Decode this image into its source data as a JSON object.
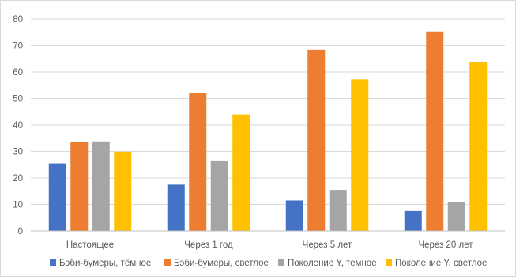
{
  "chart_data": {
    "type": "bar",
    "categories": [
      "Настоящее",
      "Через 1 год",
      "Через 5 лет",
      "Через 20 лет"
    ],
    "series": [
      {
        "name": "Бэби-бумеры, тёмное",
        "values": [
          25.5,
          17.5,
          11.5,
          7.5
        ],
        "color": "#4472c4"
      },
      {
        "name": "Бэби-бумеры, светлое",
        "values": [
          33.5,
          52.2,
          68.4,
          75.3
        ],
        "color": "#ed7d31"
      },
      {
        "name": "Поколение Y, темное",
        "values": [
          33.8,
          26.6,
          15.5,
          11.0
        ],
        "color": "#a5a5a5"
      },
      {
        "name": "Поколение Y, светлое",
        "values": [
          29.9,
          44.0,
          57.2,
          63.8
        ],
        "color": "#ffc000"
      }
    ],
    "yticks": [
      "0",
      "10",
      "20",
      "30",
      "40",
      "50",
      "60",
      "70",
      "80"
    ],
    "ylim": [
      0,
      80
    ],
    "grid": true,
    "legend_position": "bottom",
    "title": "",
    "xlabel": "",
    "ylabel": ""
  }
}
